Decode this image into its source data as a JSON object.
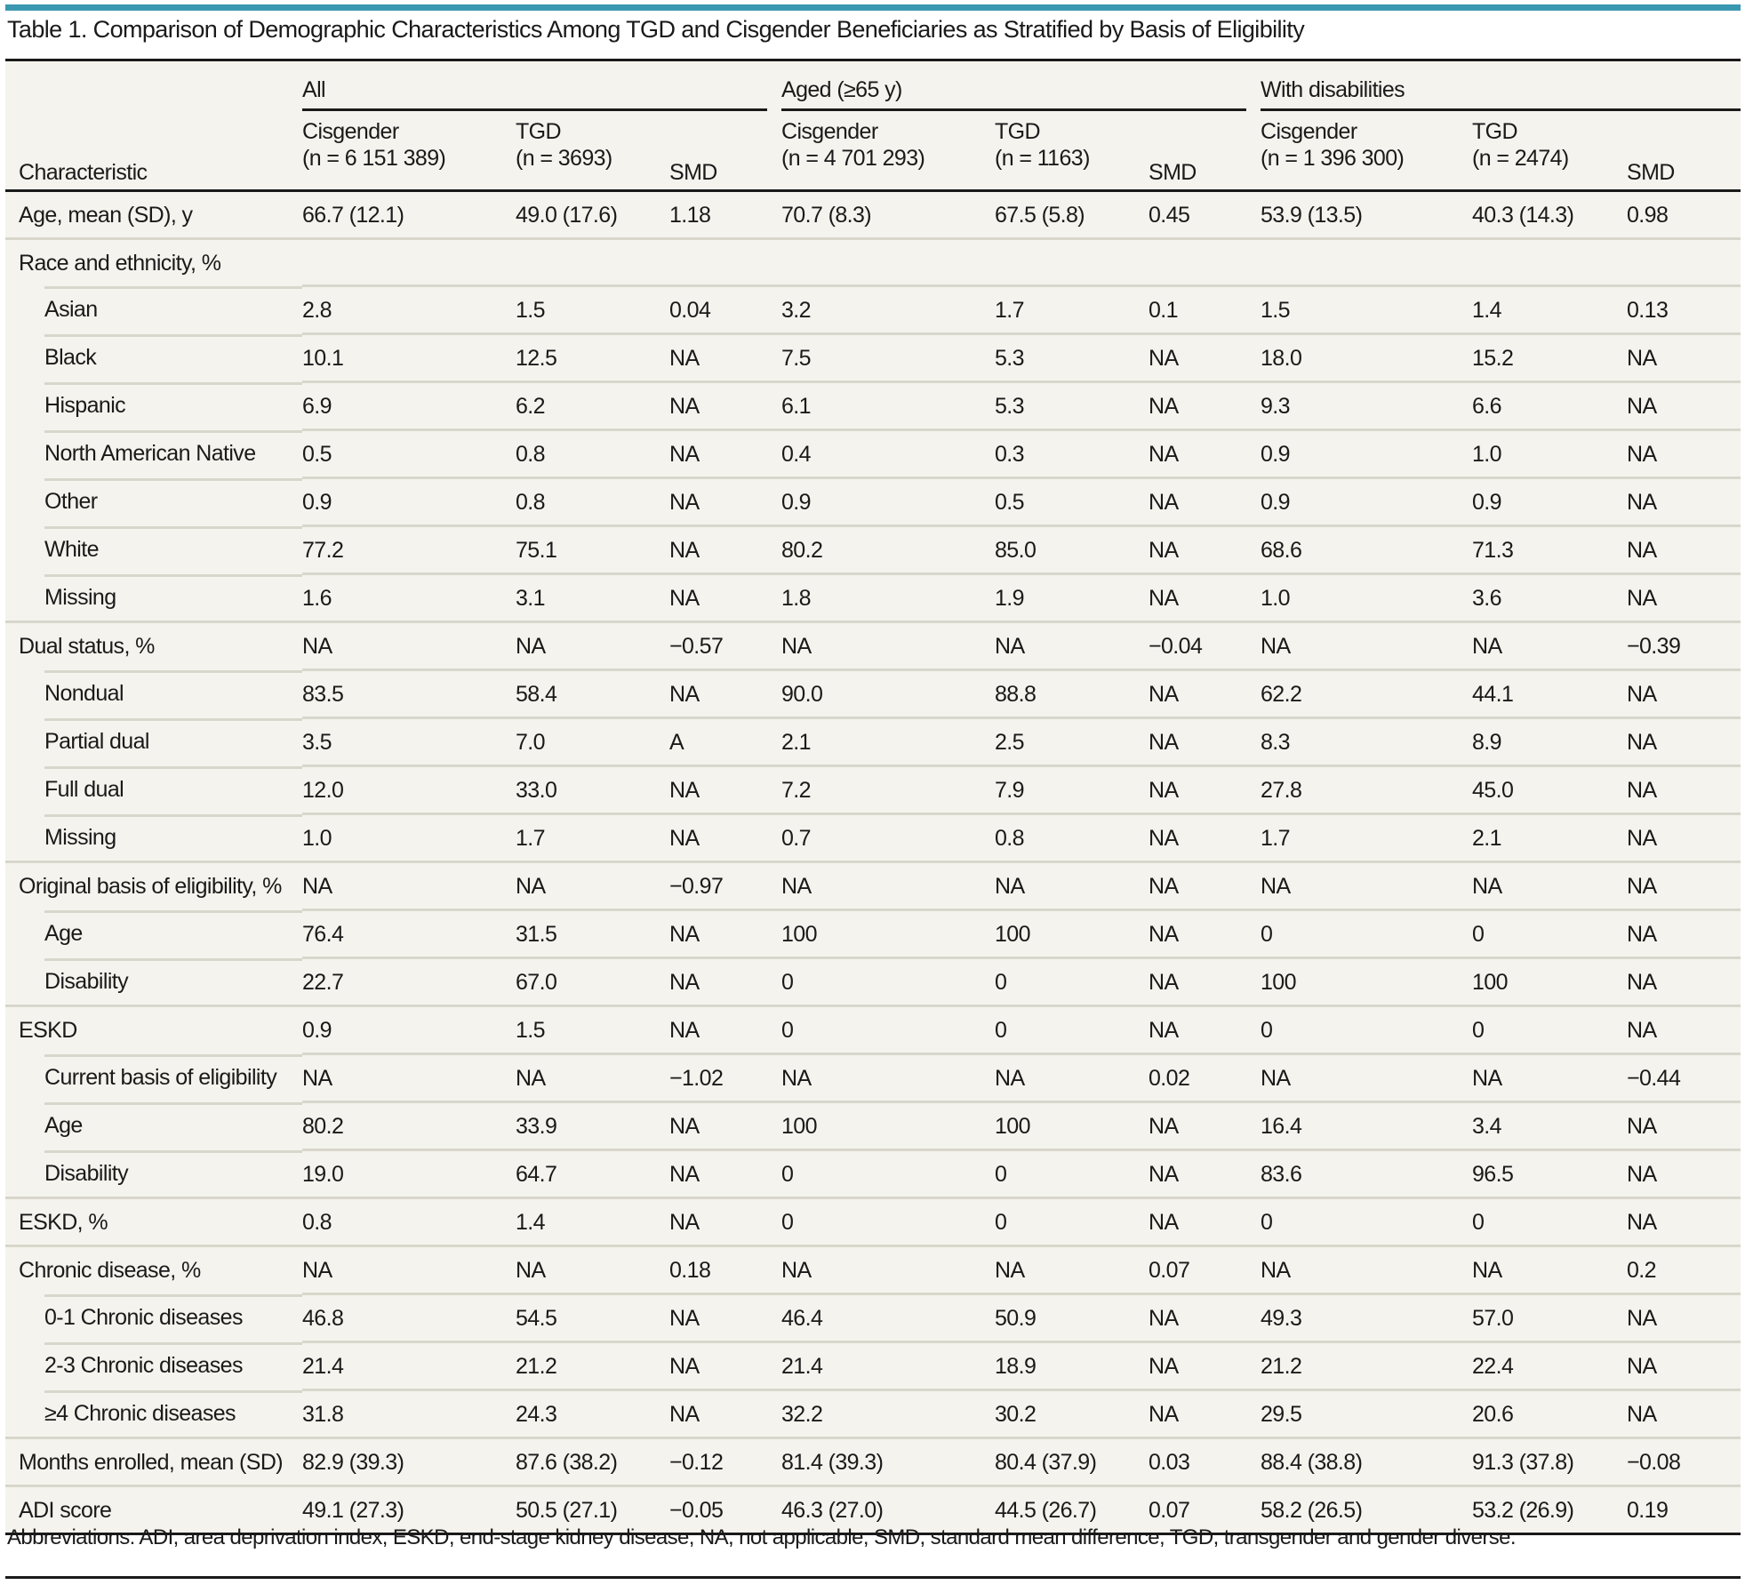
{
  "title": "Table 1. Comparison of Demographic Characteristics Among TGD and Cisgender Beneficiaries as Stratified by Basis of Eligibility",
  "colors": {
    "accent_bar": "#3a98b0",
    "table_background": "#f4f3ed",
    "row_divider": "#d9d6cb",
    "rule": "#1a1a1a"
  },
  "header": {
    "characteristic": "Characteristic",
    "groups": [
      "All",
      "Aged (≥65 y)",
      "With disabilities"
    ],
    "subcolumns": [
      {
        "line1": "Cisgender",
        "line2": "(n = 6 151 389)"
      },
      {
        "line1": "TGD",
        "line2": "(n = 3693)"
      },
      {
        "line1": "",
        "line2": "SMD"
      },
      {
        "line1": "Cisgender",
        "line2": "(n = 4 701 293)"
      },
      {
        "line1": "TGD",
        "line2": "(n = 1163)"
      },
      {
        "line1": "",
        "line2": "SMD"
      },
      {
        "line1": "Cisgender",
        "line2": "(n = 1 396 300)"
      },
      {
        "line1": "TGD",
        "line2": "(n = 2474)"
      },
      {
        "line1": "",
        "line2": "SMD"
      }
    ]
  },
  "rows": [
    {
      "label": "Age, mean (SD), y",
      "indent": false,
      "cells": [
        "66.7 (12.1)",
        "49.0 (17.6)",
        "1.18",
        "70.7 (8.3)",
        "67.5 (5.8)",
        "0.45",
        "53.9 (13.5)",
        "40.3 (14.3)",
        "0.98"
      ]
    },
    {
      "label": "Race and ethnicity, %",
      "indent": false,
      "cells": [
        "",
        "",
        "",
        "",
        "",
        "",
        "",
        "",
        ""
      ]
    },
    {
      "label": "Asian",
      "indent": true,
      "cells": [
        "2.8",
        "1.5",
        "0.04",
        "3.2",
        "1.7",
        "0.1",
        "1.5",
        "1.4",
        "0.13"
      ]
    },
    {
      "label": "Black",
      "indent": true,
      "cells": [
        "10.1",
        "12.5",
        "NA",
        "7.5",
        "5.3",
        "NA",
        "18.0",
        "15.2",
        "NA"
      ]
    },
    {
      "label": "Hispanic",
      "indent": true,
      "cells": [
        "6.9",
        "6.2",
        "NA",
        "6.1",
        "5.3",
        "NA",
        "9.3",
        "6.6",
        "NA"
      ]
    },
    {
      "label": "North American Native",
      "indent": true,
      "cells": [
        "0.5",
        "0.8",
        "NA",
        "0.4",
        "0.3",
        "NA",
        "0.9",
        "1.0",
        "NA"
      ]
    },
    {
      "label": "Other",
      "indent": true,
      "cells": [
        "0.9",
        "0.8",
        "NA",
        "0.9",
        "0.5",
        "NA",
        "0.9",
        "0.9",
        "NA"
      ]
    },
    {
      "label": "White",
      "indent": true,
      "cells": [
        "77.2",
        "75.1",
        "NA",
        "80.2",
        "85.0",
        "NA",
        "68.6",
        "71.3",
        "NA"
      ]
    },
    {
      "label": "Missing",
      "indent": true,
      "cells": [
        "1.6",
        "3.1",
        "NA",
        "1.8",
        "1.9",
        "NA",
        "1.0",
        "3.6",
        "NA"
      ]
    },
    {
      "label": "Dual status, %",
      "indent": false,
      "cells": [
        "NA",
        "NA",
        "−0.57",
        "NA",
        "NA",
        "−0.04",
        "NA",
        "NA",
        "−0.39"
      ]
    },
    {
      "label": "Nondual",
      "indent": true,
      "cells": [
        "83.5",
        "58.4",
        "NA",
        "90.0",
        "88.8",
        "NA",
        "62.2",
        "44.1",
        "NA"
      ]
    },
    {
      "label": "Partial dual",
      "indent": true,
      "cells": [
        "3.5",
        "7.0",
        "A",
        "2.1",
        "2.5",
        "NA",
        "8.3",
        "8.9",
        "NA"
      ]
    },
    {
      "label": "Full dual",
      "indent": true,
      "cells": [
        "12.0",
        "33.0",
        "NA",
        "7.2",
        "7.9",
        "NA",
        "27.8",
        "45.0",
        "NA"
      ]
    },
    {
      "label": "Missing",
      "indent": true,
      "cells": [
        "1.0",
        "1.7",
        "NA",
        "0.7",
        "0.8",
        "NA",
        "1.7",
        "2.1",
        "NA"
      ]
    },
    {
      "label": "Original basis of eligibility, %",
      "indent": false,
      "cells": [
        "NA",
        "NA",
        "−0.97",
        "NA",
        "NA",
        "NA",
        "NA",
        "NA",
        "NA"
      ]
    },
    {
      "label": "Age",
      "indent": true,
      "cells": [
        "76.4",
        "31.5",
        "NA",
        "100",
        "100",
        "NA",
        "0",
        "0",
        "NA"
      ]
    },
    {
      "label": "Disability",
      "indent": true,
      "cells": [
        "22.7",
        "67.0",
        "NA",
        "0",
        "0",
        "NA",
        "100",
        "100",
        "NA"
      ]
    },
    {
      "label": "ESKD",
      "indent": false,
      "cells": [
        "0.9",
        "1.5",
        "NA",
        "0",
        "0",
        "NA",
        "0",
        "0",
        "NA"
      ]
    },
    {
      "label": "Current basis of eligibility",
      "indent": true,
      "cells": [
        "NA",
        "NA",
        "−1.02",
        "NA",
        "NA",
        "0.02",
        "NA",
        "NA",
        "−0.44"
      ]
    },
    {
      "label": "Age",
      "indent": true,
      "cells": [
        "80.2",
        "33.9",
        "NA",
        "100",
        "100",
        "NA",
        "16.4",
        "3.4",
        "NA"
      ]
    },
    {
      "label": "Disability",
      "indent": true,
      "cells": [
        "19.0",
        "64.7",
        "NA",
        "0",
        "0",
        "NA",
        "83.6",
        "96.5",
        "NA"
      ]
    },
    {
      "label": "ESKD, %",
      "indent": false,
      "cells": [
        "0.8",
        "1.4",
        "NA",
        "0",
        "0",
        "NA",
        "0",
        "0",
        "NA"
      ]
    },
    {
      "label": "Chronic disease, %",
      "indent": false,
      "cells": [
        "NA",
        "NA",
        "0.18",
        "NA",
        "NA",
        "0.07",
        "NA",
        "NA",
        "0.2"
      ]
    },
    {
      "label": "0-1 Chronic diseases",
      "indent": true,
      "cells": [
        "46.8",
        "54.5",
        "NA",
        "46.4",
        "50.9",
        "NA",
        "49.3",
        "57.0",
        "NA"
      ]
    },
    {
      "label": "2-3 Chronic diseases",
      "indent": true,
      "cells": [
        "21.4",
        "21.2",
        "NA",
        "21.4",
        "18.9",
        "NA",
        "21.2",
        "22.4",
        "NA"
      ]
    },
    {
      "label": "≥4 Chronic diseases",
      "indent": true,
      "cells": [
        "31.8",
        "24.3",
        "NA",
        "32.2",
        "30.2",
        "NA",
        "29.5",
        "20.6",
        "NA"
      ]
    },
    {
      "label": "Months enrolled, mean (SD)",
      "indent": false,
      "cells": [
        "82.9 (39.3)",
        "87.6 (38.2)",
        "−0.12",
        "81.4 (39.3)",
        "80.4 (37.9)",
        "0.03",
        "88.4 (38.8)",
        "91.3 (37.8)",
        "−0.08"
      ]
    },
    {
      "label": "ADI score",
      "indent": false,
      "cells": [
        "49.1 (27.3)",
        "50.5 (27.1)",
        "−0.05",
        "46.3 (27.0)",
        "44.5 (26.7)",
        "0.07",
        "58.2 (26.5)",
        "53.2 (26.9)",
        "0.19"
      ]
    }
  ],
  "footnote": "Abbreviations: ADI, area deprivation index; ESKD, end-stage kidney disease; NA, not applicable; SMD, standard mean difference; TGD, transgender and gender diverse."
}
